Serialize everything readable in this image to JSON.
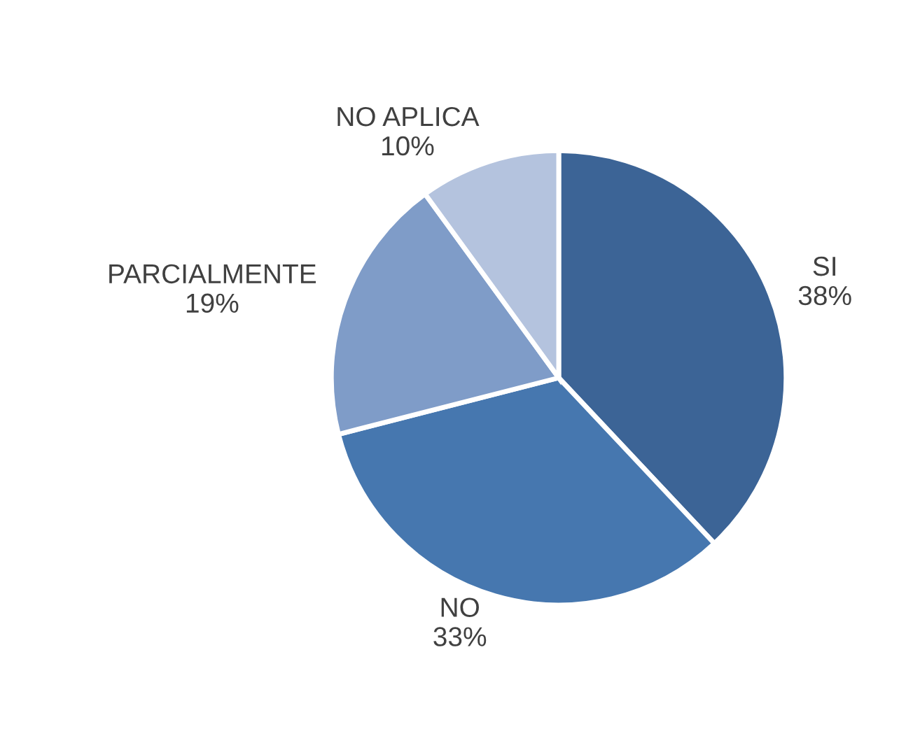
{
  "chart_data": {
    "type": "pie",
    "categories": [
      "SI",
      "NO",
      "PARCIALMENTE",
      "NO APLICA"
    ],
    "values": [
      38,
      33,
      19,
      10
    ],
    "colors": [
      "#3c6496",
      "#4677af",
      "#7f9cc8",
      "#b4c3de"
    ],
    "value_labels": [
      "38%",
      "33%",
      "19%",
      "10%"
    ],
    "legend": false
  }
}
